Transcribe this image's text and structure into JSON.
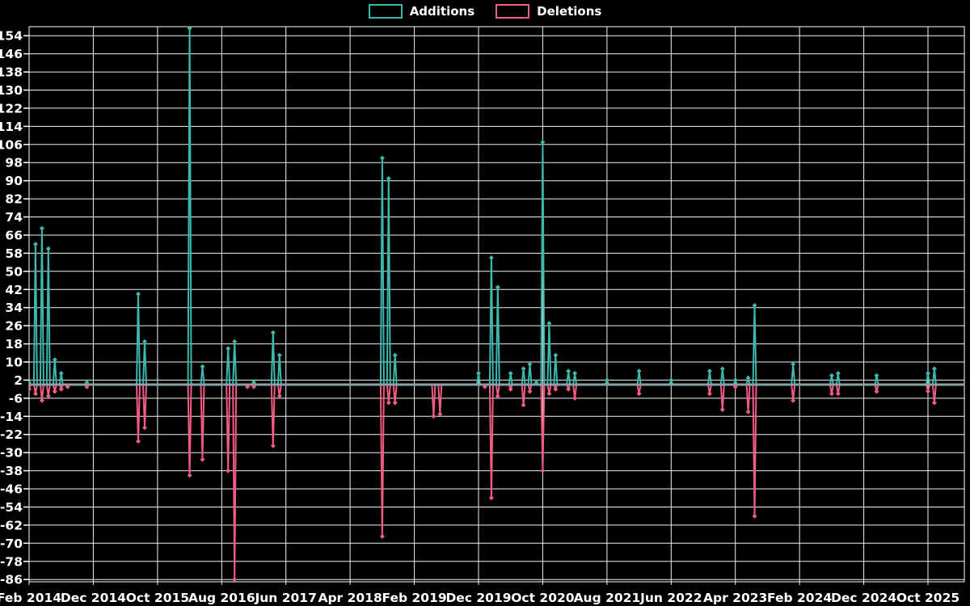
{
  "legend": [
    {
      "label": "Additions",
      "color": "#3db8ad"
    },
    {
      "label": "Deletions",
      "color": "#f25c82"
    }
  ],
  "colors": {
    "background": "#000000",
    "grid": "#f2f2f2",
    "text": "#ffffff",
    "zero_line": "#8aa0a8",
    "additions": "#3db8ad",
    "deletions": "#f25c82"
  },
  "chart_data": {
    "type": "line",
    "title": "",
    "xlabel": "",
    "ylabel": "",
    "legend_position": "top-center",
    "grid": true,
    "series_names": [
      "Additions",
      "Deletions"
    ],
    "x_tick_labels": [
      "Feb 2014",
      "Dec 2014",
      "Oct 2015",
      "Aug 2016",
      "Jun 2017",
      "Apr 2018",
      "Feb 2019",
      "Dec 2019",
      "Oct 2020",
      "Aug 2021",
      "Jun 2022",
      "Apr 2023",
      "Feb 2024",
      "Dec 2024",
      "Oct 2025"
    ],
    "x_tick_interval_months": 10,
    "start_month": "2014-02",
    "n_months": 146,
    "baseline_value": 0,
    "ylim": [
      -87,
      158
    ],
    "y_ticks": [
      154,
      146,
      138,
      130,
      122,
      114,
      106,
      98,
      90,
      82,
      74,
      66,
      58,
      50,
      42,
      34,
      26,
      18,
      10,
      2,
      -6,
      -14,
      -22,
      -30,
      -38,
      -46,
      -54,
      -62,
      -70,
      -78,
      -86
    ],
    "clipped_spike_month": "2016-03",
    "points": [
      {
        "month": "2014-02",
        "additions": 1,
        "deletions": -2
      },
      {
        "month": "2014-03",
        "additions": 62,
        "deletions": -4
      },
      {
        "month": "2014-04",
        "additions": 69,
        "deletions": -7
      },
      {
        "month": "2014-05",
        "additions": 60,
        "deletions": -5
      },
      {
        "month": "2014-06",
        "additions": 11,
        "deletions": -3
      },
      {
        "month": "2014-07",
        "additions": 5,
        "deletions": -2
      },
      {
        "month": "2014-08",
        "additions": 0,
        "deletions": -1
      },
      {
        "month": "2014-11",
        "additions": 1,
        "deletions": -1
      },
      {
        "month": "2015-07",
        "additions": 40,
        "deletions": -25
      },
      {
        "month": "2015-08",
        "additions": 19,
        "deletions": -19
      },
      {
        "month": "2016-03",
        "additions": 160,
        "deletions": -40
      },
      {
        "month": "2016-05",
        "additions": 8,
        "deletions": -33
      },
      {
        "month": "2016-09",
        "additions": 16,
        "deletions": -38
      },
      {
        "month": "2016-10",
        "additions": 19,
        "deletions": -86
      },
      {
        "month": "2016-12",
        "additions": 0,
        "deletions": -1
      },
      {
        "month": "2017-01",
        "additions": 1,
        "deletions": -1
      },
      {
        "month": "2017-04",
        "additions": 23,
        "deletions": -27
      },
      {
        "month": "2017-05",
        "additions": 13,
        "deletions": -5
      },
      {
        "month": "2018-09",
        "additions": 100,
        "deletions": -67
      },
      {
        "month": "2018-10",
        "additions": 91,
        "deletions": -8
      },
      {
        "month": "2018-11",
        "additions": 13,
        "deletions": -8
      },
      {
        "month": "2019-05",
        "additions": 0,
        "deletions": -14
      },
      {
        "month": "2019-06",
        "additions": 0,
        "deletions": -13
      },
      {
        "month": "2019-12",
        "additions": 5,
        "deletions": 0
      },
      {
        "month": "2020-01",
        "additions": 0,
        "deletions": -1
      },
      {
        "month": "2020-02",
        "additions": 56,
        "deletions": -50
      },
      {
        "month": "2020-03",
        "additions": 43,
        "deletions": -5
      },
      {
        "month": "2020-05",
        "additions": 5,
        "deletions": -2
      },
      {
        "month": "2020-07",
        "additions": 7,
        "deletions": -9
      },
      {
        "month": "2020-08",
        "additions": 9,
        "deletions": -3
      },
      {
        "month": "2020-09",
        "additions": 1,
        "deletions": 0
      },
      {
        "month": "2020-10",
        "additions": 107,
        "deletions": -38
      },
      {
        "month": "2020-11",
        "additions": 27,
        "deletions": -4
      },
      {
        "month": "2020-12",
        "additions": 13,
        "deletions": -2
      },
      {
        "month": "2021-02",
        "additions": 6,
        "deletions": -2
      },
      {
        "month": "2021-03",
        "additions": 5,
        "deletions": -6
      },
      {
        "month": "2021-08",
        "additions": 2,
        "deletions": 0
      },
      {
        "month": "2022-01",
        "additions": 6,
        "deletions": -4
      },
      {
        "month": "2022-06",
        "additions": 2,
        "deletions": 0
      },
      {
        "month": "2022-12",
        "additions": 6,
        "deletions": -4
      },
      {
        "month": "2023-02",
        "additions": 7,
        "deletions": -11
      },
      {
        "month": "2023-04",
        "additions": 2,
        "deletions": -1
      },
      {
        "month": "2023-06",
        "additions": 3,
        "deletions": -12
      },
      {
        "month": "2023-07",
        "additions": 35,
        "deletions": -58
      },
      {
        "month": "2024-01",
        "additions": 9,
        "deletions": -7
      },
      {
        "month": "2024-07",
        "additions": 4,
        "deletions": -4
      },
      {
        "month": "2024-08",
        "additions": 5,
        "deletions": -4
      },
      {
        "month": "2025-02",
        "additions": 4,
        "deletions": -3
      },
      {
        "month": "2025-10",
        "additions": 5,
        "deletions": -3
      },
      {
        "month": "2025-11",
        "additions": 7,
        "deletions": -8
      }
    ]
  }
}
